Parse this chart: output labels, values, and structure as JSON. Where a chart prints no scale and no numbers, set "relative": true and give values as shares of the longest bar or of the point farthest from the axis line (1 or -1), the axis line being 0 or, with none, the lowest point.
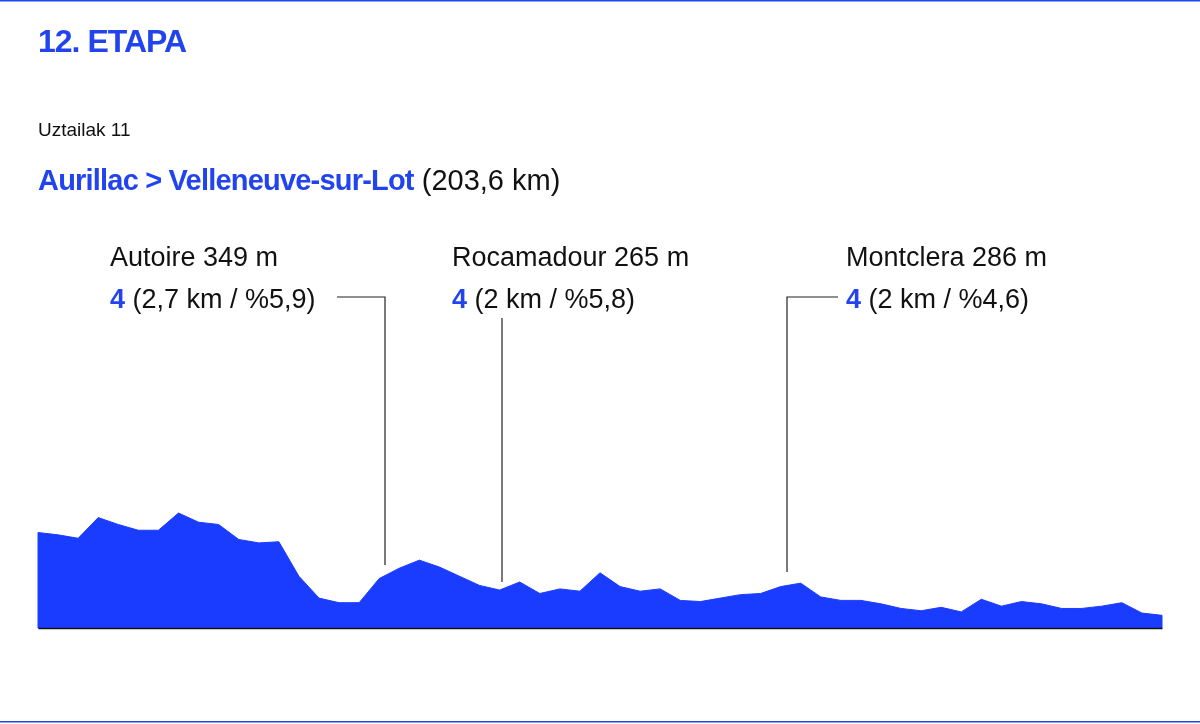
{
  "chart_data": {
    "type": "area",
    "relative": true,
    "title": "12. ETAPA",
    "subtitle": "Uztailak 11",
    "annotations": [
      "Aurillac > Velleneuve-sur-Lot (203,6 km)",
      "Autoire 349 m",
      "4 (2,7 km / %5,9)",
      "Rocamadour 265 m",
      "4 (2 km / %5,8)",
      "Montclera 286 m",
      "4 (2 km / %4,6)"
    ],
    "categories": [
      null,
      null,
      null,
      null,
      null,
      null,
      null,
      null,
      null,
      null,
      null,
      null,
      null,
      null,
      null,
      null,
      null,
      null,
      null,
      null,
      null,
      null,
      null,
      null,
      null,
      null,
      null,
      null,
      null,
      null,
      null,
      null,
      null,
      null,
      null,
      null,
      null,
      null,
      null,
      null,
      null,
      null,
      null,
      null,
      null,
      null,
      null,
      null,
      null,
      null,
      null,
      null,
      null,
      null,
      null,
      null,
      null
    ],
    "series": [
      {
        "color": "#1a3cff",
        "values": [
          0.83,
          0.81,
          0.78,
          0.96,
          0.9,
          0.85,
          0.85,
          1,
          0.92,
          0.9,
          0.77,
          0.74,
          0.75,
          0.45,
          0.26,
          0.22,
          0.22,
          0.43,
          0.52,
          0.59,
          0.53,
          0.45,
          0.37,
          0.33,
          0.4,
          0.3,
          0.34,
          0.32,
          0.48,
          0.36,
          0.32,
          0.34,
          0.24,
          0.23,
          0.26,
          0.29,
          0.3,
          0.36,
          0.39,
          0.27,
          0.24,
          0.24,
          0.21,
          0.17,
          0.15,
          0.18,
          0.14,
          0.25,
          0.19,
          0.23,
          0.21,
          0.17,
          0.17,
          0.19,
          0.22,
          0.13,
          0.11
        ]
      }
    ]
  }
}
